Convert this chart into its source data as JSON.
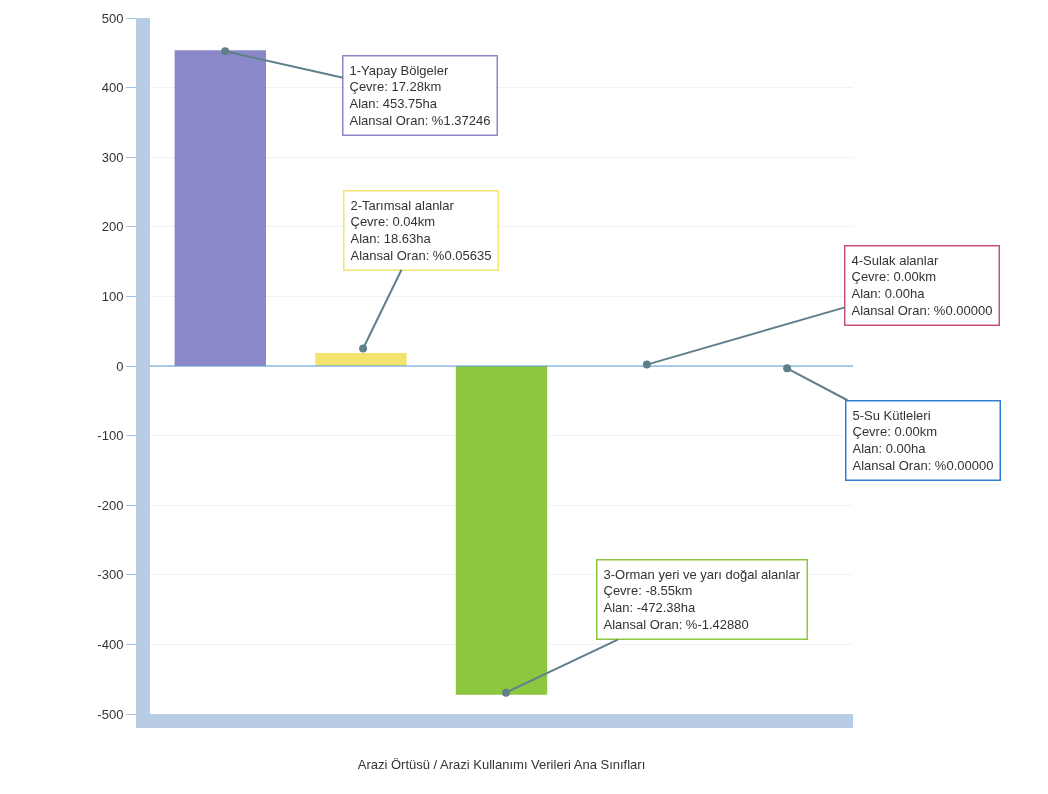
{
  "chart_data": {
    "type": "bar",
    "xlabel": "Arazi Örtüsü / Arazi Kullanımı Verileri Ana Sınıfları",
    "categories": [
      null,
      null,
      null,
      null,
      null
    ],
    "values": [
      453.75,
      18.63,
      -472.38,
      0,
      0
    ],
    "colors": [
      "#8b88c9",
      "#f2e26e",
      "#8dc63f",
      "#c8507e",
      "#2f7fd1"
    ],
    "value_labels": [
      "1-Yapay Bölgeler\nÇevre: 17.28km\nAlan: 453.75ha\nAlansal Oran: %1.37246",
      "2-Tarımsal alanlar\nÇevre: 0.04km\nAlan: 18.63ha\nAlansal Oran: %0.05635",
      "3-Orman yeri ve yarı doğal alanlar\nÇevre: -8.55km\nAlan: -472.38ha\nAlansal Oran: %-1.42880",
      "4-Sulak alanlar\nÇevre: 0.00km\nAlan: 0.00ha\nAlansal Oran: %0.00000",
      "5-Su Kütleleri\nÇevre: 0.00km\nAlan: 0.00ha\nAlansal Oran: %0.00000"
    ],
    "ref_lines": [
      {
        "axis": "y",
        "value": 0,
        "color": "#5b9bd5"
      }
    ],
    "ylim": [
      -500,
      500
    ],
    "yticks": [
      -500,
      -400,
      -300,
      -200,
      -100,
      0,
      100,
      200,
      300,
      400,
      500
    ],
    "grid": "y"
  }
}
